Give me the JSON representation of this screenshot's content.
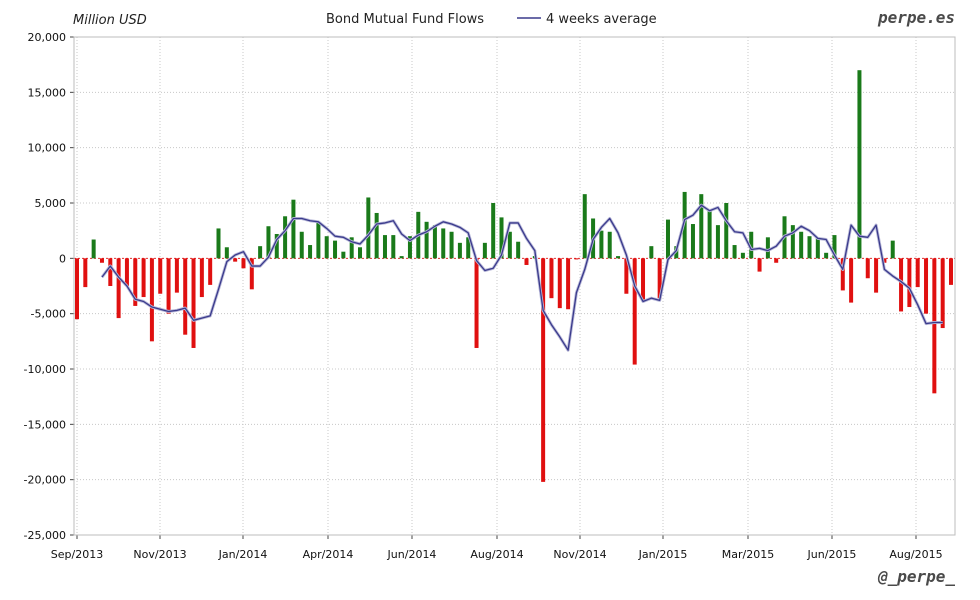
{
  "chart_data": {
    "type": "bar",
    "title": "Bond Mutual Fund Flows",
    "ylabel": "Million USD",
    "ylim": [
      -25000,
      20000
    ],
    "yticks": [
      "20,000",
      "15,000",
      "10,000",
      "5,000",
      "0",
      "-5,000",
      "-10,000",
      "-15,000",
      "-20,000",
      "-25,000"
    ],
    "xticks": [
      "Sep/2013",
      "Nov/2013",
      "Jan/2014",
      "Apr/2014",
      "Jun/2014",
      "Aug/2014",
      "Nov/2014",
      "Jan/2015",
      "Mar/2015",
      "Jun/2015",
      "Aug/2015"
    ],
    "grid": true,
    "legend_position": "top-center",
    "colors": {
      "positive": "#1a7a1a",
      "negative": "#e01010",
      "line": "#3a3a8c",
      "grid": "#c8c8c8",
      "zero": "#e03030"
    },
    "series": [
      {
        "kind": "bar",
        "values": [
          -5500,
          -2600,
          1700,
          -400,
          -2500,
          -5400,
          -2500,
          -4300,
          -3500,
          -7500,
          -3200,
          -5000,
          -3100,
          -6900,
          -8100,
          -3500,
          -2400,
          2700,
          1000,
          -300,
          -900,
          -2800,
          1100,
          2900,
          2200,
          3800,
          5300,
          2400,
          1200,
          3300,
          2000,
          1600,
          600,
          1900,
          1000,
          5500,
          4100,
          2100,
          2100,
          200,
          2000,
          4200,
          3300,
          3000,
          2700,
          2400,
          1400,
          1900,
          -8100,
          1400,
          5000,
          3700,
          2400,
          1500,
          -600,
          200,
          -20200,
          -3600,
          -4500,
          -4600,
          -100,
          5800,
          3600,
          2500,
          2400,
          200,
          -3200,
          -9600,
          -3800,
          1100,
          -3600,
          3500,
          1100,
          6000,
          3100,
          5800,
          4400,
          3000,
          5000,
          1200,
          500,
          2400,
          -1200,
          1900,
          -400,
          3800,
          3000,
          2400,
          2000,
          1900,
          500,
          2100,
          -2900,
          -4000,
          17000,
          -1800,
          -3100,
          -400,
          1600,
          -4800,
          -4400,
          -2600,
          -5000,
          -12200,
          -6300,
          -2400
        ]
      },
      {
        "name": "4 weeks average",
        "kind": "line",
        "values": [
          null,
          null,
          null,
          -1700,
          -700,
          -1700,
          -2500,
          -3700,
          -3900,
          -4400,
          -4600,
          -4800,
          -4700,
          -4500,
          -5600,
          -5400,
          -5200,
          -2800,
          -300,
          300,
          600,
          -700,
          -700,
          100,
          1700,
          2500,
          3600,
          3600,
          3400,
          3300,
          2700,
          2000,
          1900,
          1500,
          1300,
          2100,
          3100,
          3200,
          3400,
          2200,
          1600,
          2100,
          2400,
          2900,
          3300,
          3100,
          2800,
          2300,
          -200,
          -1100,
          -900,
          300,
          3200,
          3200,
          1800,
          700,
          -4700,
          -6000,
          -7100,
          -8300,
          -3100,
          -1000,
          1700,
          2800,
          3600,
          2300,
          300,
          -2500,
          -3900,
          -3600,
          -3800,
          -100,
          700,
          3500,
          3900,
          4800,
          4300,
          4600,
          3400,
          2400,
          2300,
          800,
          900,
          700,
          1100,
          2000,
          2300,
          2900,
          2500,
          1800,
          1700,
          300,
          -1000,
          3000,
          2000,
          1900,
          3000,
          -1000,
          -1600,
          -2100,
          -2700,
          -4200,
          -5900,
          -5800,
          -5800
        ]
      }
    ]
  },
  "header": {
    "unit_label": "Million USD",
    "title": "Bond Mutual Fund Flows",
    "legend_label": "4 weeks average",
    "site": "perpe.es",
    "handle": "@_perpe_"
  }
}
